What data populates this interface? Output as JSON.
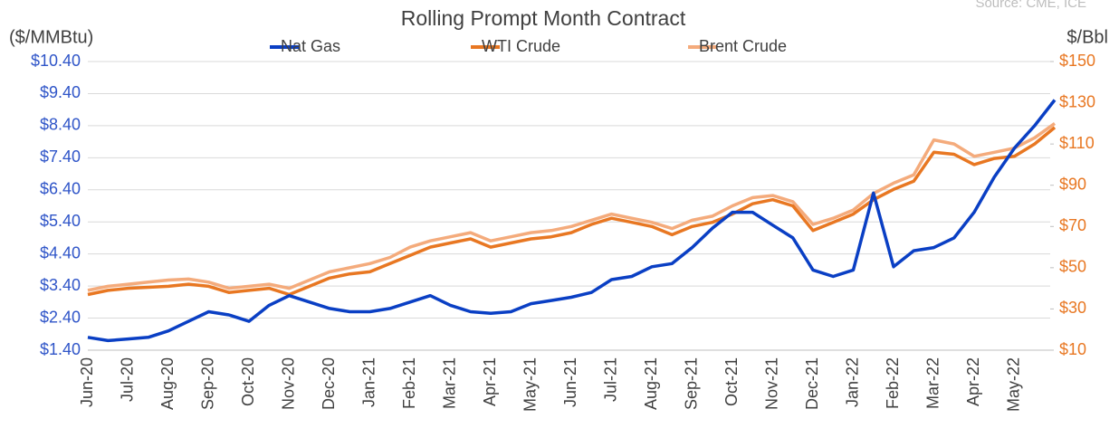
{
  "chart_data": {
    "type": "line",
    "title": "Rolling Prompt Month Contract",
    "source": "Source: CME, ICE",
    "ylabel": "($/MMBtu)",
    "y2label": "$/Bbl",
    "categories": [
      "Jun-20",
      null,
      "Jul-20",
      null,
      "Aug-20",
      null,
      "Sep-20",
      null,
      "Oct-20",
      null,
      "Nov-20",
      null,
      "Dec-20",
      null,
      "Jan-21",
      null,
      "Feb-21",
      null,
      "Mar-21",
      null,
      "Apr-21",
      null,
      "May-21",
      null,
      "Jun-21",
      null,
      "Jul-21",
      null,
      "Aug-21",
      null,
      "Sep-21",
      null,
      "Oct-21",
      null,
      "Nov-21",
      null,
      "Dec-21",
      null,
      "Jan-22",
      null,
      "Feb-22",
      null,
      "Mar-22",
      null,
      "Apr-22",
      null,
      "May-22",
      null,
      null
    ],
    "series": [
      {
        "name": "Nat Gas",
        "color": "#0a3fc4",
        "values": [
          1.8,
          1.7,
          1.75,
          1.8,
          2.0,
          2.3,
          2.6,
          2.5,
          2.3,
          2.8,
          3.1,
          2.9,
          2.7,
          2.6,
          2.6,
          2.7,
          2.9,
          3.1,
          2.8,
          2.6,
          2.55,
          2.6,
          2.85,
          2.95,
          3.05,
          3.2,
          3.6,
          3.7,
          4.0,
          4.1,
          4.6,
          5.2,
          5.7,
          5.7,
          5.3,
          4.9,
          3.9,
          3.7,
          3.9,
          6.3,
          4.0,
          4.5,
          4.6,
          4.9,
          5.7,
          6.8,
          7.7,
          8.4,
          9.2
        ]
      },
      {
        "name": "WTI Crude",
        "color": "#e87722",
        "axis": "y2",
        "values": [
          37,
          39,
          40,
          40.5,
          41,
          42,
          41,
          38,
          39,
          40,
          37,
          41,
          45,
          47,
          48,
          52,
          56,
          60,
          62,
          64,
          60,
          62,
          64,
          65,
          67,
          71,
          74,
          72,
          70,
          66,
          70,
          72,
          76,
          81,
          83,
          80,
          68,
          72,
          76,
          83,
          88,
          92,
          106,
          105,
          100,
          103,
          104,
          110,
          118
        ]
      },
      {
        "name": "Brent Crude",
        "color": "#f4ab7c",
        "axis": "y2",
        "values": [
          39,
          41,
          42,
          43,
          44,
          44.5,
          43,
          40,
          41,
          42,
          40,
          44,
          48,
          50,
          52,
          55,
          60,
          63,
          65,
          67,
          63,
          65,
          67,
          68,
          70,
          73,
          76,
          74,
          72,
          69,
          73,
          75,
          80,
          84,
          85,
          82,
          71,
          74,
          78,
          86,
          91,
          95,
          112,
          110,
          104,
          106,
          108,
          113,
          120
        ]
      }
    ],
    "ylim": [
      1.4,
      10.4
    ],
    "yticks": [
      {
        "value": 1.4,
        "label": "$1.40"
      },
      {
        "value": 2.4,
        "label": "$2.40"
      },
      {
        "value": 3.4,
        "label": "$3.40"
      },
      {
        "value": 4.4,
        "label": "$4.40"
      },
      {
        "value": 5.4,
        "label": "$5.40"
      },
      {
        "value": 6.4,
        "label": "$6.40"
      },
      {
        "value": 7.4,
        "label": "$7.40"
      },
      {
        "value": 8.4,
        "label": "$8.40"
      },
      {
        "value": 9.4,
        "label": "$9.40"
      },
      {
        "value": 10.4,
        "label": "$10.40"
      }
    ],
    "y2lim": [
      10,
      150
    ],
    "y2ticks": [
      {
        "value": 10,
        "label": "$10"
      },
      {
        "value": 30,
        "label": "$30"
      },
      {
        "value": 50,
        "label": "$50"
      },
      {
        "value": 70,
        "label": "$70"
      },
      {
        "value": 90,
        "label": "$90"
      },
      {
        "value": 110,
        "label": "$110"
      },
      {
        "value": 130,
        "label": "$130"
      },
      {
        "value": 150,
        "label": "$150"
      }
    ],
    "grid": true
  }
}
